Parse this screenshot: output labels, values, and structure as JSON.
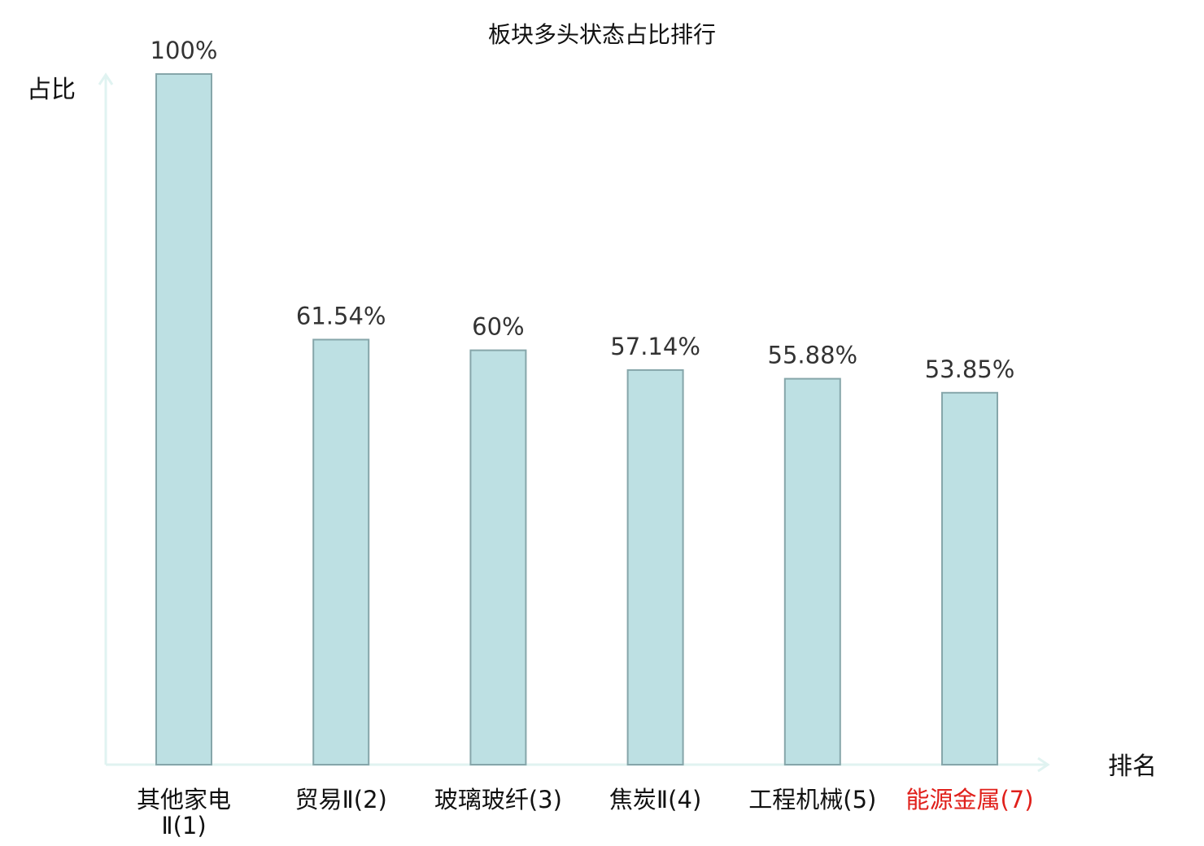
{
  "chart_data": {
    "type": "bar",
    "title": "板块多头状态占比排行",
    "xlabel": "排名",
    "ylabel": "占比",
    "ylim": [
      0,
      100
    ],
    "categories": [
      "其他家电Ⅱ(1)",
      "贸易Ⅱ(2)",
      "玻璃玻纤(3)",
      "焦炭Ⅱ(4)",
      "工程机械(5)",
      "能源金属(7)"
    ],
    "category_lines": [
      [
        "其他家电",
        "Ⅱ(1)"
      ],
      [
        "贸易Ⅱ(2)"
      ],
      [
        "玻璃玻纤(3)"
      ],
      [
        "焦炭Ⅱ(4)"
      ],
      [
        "工程机械(5)"
      ],
      [
        "能源金属(7)"
      ]
    ],
    "values": [
      100,
      61.54,
      60,
      57.14,
      55.88,
      53.85
    ],
    "value_labels": [
      "100%",
      "61.54%",
      "60%",
      "57.14%",
      "55.88%",
      "53.85%"
    ],
    "category_label_colors": [
      "#111111",
      "#111111",
      "#111111",
      "#111111",
      "#111111",
      "#e0201b"
    ],
    "grid": false,
    "colors": {
      "bar_fill": "#bde0e3",
      "bar_stroke": "#86a6aa",
      "axis": "#e0f3f1",
      "highlight": "#e0201b"
    }
  }
}
